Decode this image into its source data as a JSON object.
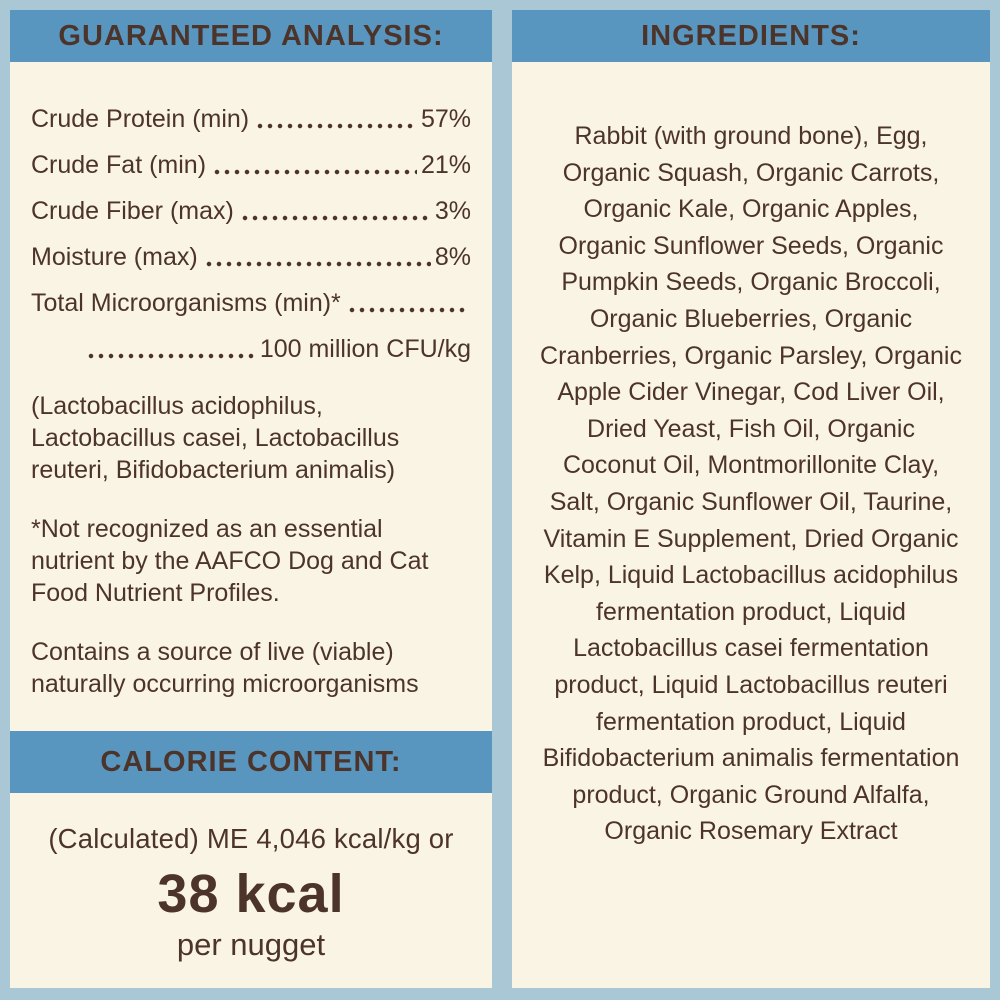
{
  "colors": {
    "frame": "#aac7d5",
    "band": "#5896bf",
    "panel": "#faf4e5",
    "text": "#4d342a"
  },
  "guaranteed_analysis": {
    "header": "GUARANTEED ANALYSIS:",
    "rows": [
      {
        "label": "Crude Protein (min)",
        "value": "57%"
      },
      {
        "label": "Crude Fat (min)",
        "value": "21%"
      },
      {
        "label": "Crude Fiber (max)",
        "value": "3%"
      },
      {
        "label": "Moisture (max)",
        "value": "8%"
      }
    ],
    "microorganisms_label": "Total Microorganisms (min)*",
    "microorganisms_value": "100 million CFU/kg",
    "paragraphs": [
      "(Lactobacillus acidophilus, Lactobacillus casei, Lactobacillus reuteri, Bifidobacterium animalis)",
      "*Not recognized as an essential nutrient by the AAFCO Dog and Cat Food Nutrient Profiles.",
      "Contains a source of live (viable) naturally occurring microorganisms"
    ]
  },
  "calorie_content": {
    "header": "CALORIE CONTENT:",
    "line": "(Calculated) ME 4,046 kcal/kg or",
    "big_value": "38 kcal",
    "unit": "per nugget"
  },
  "ingredients": {
    "header": "INGREDIENTS:",
    "text": "Rabbit (with ground bone), Egg, Organic Squash, Organic Carrots, Organic Kale, Organic Apples, Organic Sunflower Seeds, Organic Pumpkin Seeds, Organic Broccoli, Organic Blueberries, Organic Cranberries, Organic Parsley, Organic Apple Cider Vinegar, Cod Liver Oil, Dried Yeast, Fish Oil, Organic Coconut Oil, Montmorillonite Clay, Salt, Organic Sunflower Oil, Taurine, Vitamin E Supplement, Dried Organic Kelp, Liquid Lactobacillus acidophilus fermentation product, Liquid Lactobacillus casei fermentation product, Liquid Lactobacillus reuteri fermentation product, Liquid Bifidobacterium animalis fermentation product, Organic Ground Alfalfa, Organic Rosemary Extract"
  }
}
